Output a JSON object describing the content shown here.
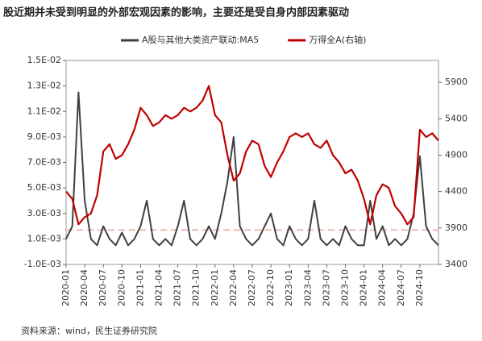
{
  "chart_data": {
    "type": "line",
    "title": "股近期并未受到明显的外部宏观因素的影响，主要还是受自身内部因素驱动",
    "source": "资料来源：wind，民生证券研究院",
    "categories": [
      "2020-01",
      null,
      null,
      "2020-04",
      null,
      null,
      "2020-07",
      null,
      null,
      "2020-10",
      null,
      null,
      "2021-01",
      null,
      null,
      "2021-04",
      null,
      null,
      "2021-07",
      null,
      null,
      "2021-10",
      null,
      null,
      "2022-01",
      null,
      null,
      "2022-04",
      null,
      null,
      "2022-07",
      null,
      null,
      "2022-10",
      null,
      null,
      "2023-01",
      null,
      null,
      "2023-04",
      null,
      null,
      "2023-07",
      null,
      null,
      "2023-10",
      null,
      null,
      "2024-01",
      null,
      null,
      "2024-04",
      null,
      null,
      "2024-07",
      null,
      null,
      "2024-10",
      null,
      null,
      null
    ],
    "series": [
      {
        "name": "A股与其他大类资产联动:MA5",
        "color": "#404040",
        "values": [
          0.001,
          0.002,
          0.0125,
          0.004,
          0.001,
          0.0005,
          0.002,
          0.001,
          0.0005,
          0.0015,
          0.0005,
          0.001,
          0.002,
          0.004,
          0.001,
          0.0005,
          0.001,
          0.0005,
          0.002,
          0.004,
          0.001,
          0.0005,
          0.001,
          0.002,
          0.001,
          0.003,
          0.0055,
          0.009,
          0.002,
          0.001,
          0.0005,
          0.001,
          0.002,
          0.003,
          0.001,
          0.0005,
          0.002,
          0.001,
          0.0005,
          0.001,
          0.004,
          0.001,
          0.0005,
          0.001,
          0.0005,
          0.002,
          0.001,
          0.0005,
          0.0005,
          0.004,
          0.001,
          0.002,
          0.0005,
          0.001,
          0.0005,
          0.001,
          0.003,
          0.0075,
          0.002,
          0.001,
          0.0005
        ]
      },
      {
        "name": "万得全A(右轴)",
        "color": "#c00000",
        "axis": "y2",
        "values": [
          4400,
          4300,
          3950,
          4050,
          4100,
          4350,
          4950,
          5050,
          4850,
          4900,
          5050,
          5250,
          5550,
          5450,
          5300,
          5350,
          5450,
          5400,
          5450,
          5550,
          5500,
          5550,
          5650,
          5850,
          5450,
          5350,
          4900,
          4550,
          4650,
          4950,
          5100,
          5050,
          4750,
          4600,
          4800,
          4950,
          5150,
          5200,
          5150,
          5200,
          5050,
          5000,
          5100,
          4900,
          4800,
          4650,
          4700,
          4550,
          4300,
          3950,
          4350,
          4500,
          4450,
          4200,
          4100,
          3950,
          4050,
          5250,
          5150,
          5200,
          5100
        ]
      }
    ],
    "reference_line": {
      "value": 0.0017,
      "color": "#f2b8b8"
    },
    "ylim": [
      -0.001,
      0.015
    ],
    "yticks": [
      {
        "value": -0.001,
        "label": "-1.0E-03"
      },
      {
        "value": 0.001,
        "label": "1.0E-03"
      },
      {
        "value": 0.003,
        "label": "3.0E-03"
      },
      {
        "value": 0.005,
        "label": "5.0E-03"
      },
      {
        "value": 0.007,
        "label": "7.0E-03"
      },
      {
        "value": 0.009,
        "label": "9.0E-03"
      },
      {
        "value": 0.011,
        "label": "1.1E-02"
      },
      {
        "value": 0.013,
        "label": "1.3E-02"
      },
      {
        "value": 0.015,
        "label": "1.5E-02"
      }
    ],
    "y2lim": [
      3400,
      6200
    ],
    "y2ticks": [
      3400,
      3900,
      4400,
      4900,
      5400,
      5900
    ],
    "legend": "top"
  }
}
